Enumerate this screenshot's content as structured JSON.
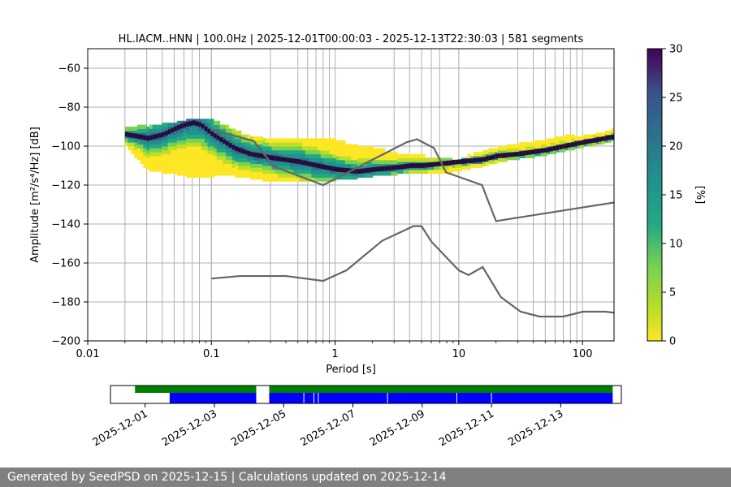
{
  "chart_data": {
    "type": "heatmap",
    "title": "HL.IACM..HNN | 100.0Hz | 2025-12-01T00:00:03 - 2025-12-13T22:30:03 | 581 segments",
    "xlabel": "Period [s]",
    "ylabel": "Amplitude [m²/s⁴/Hz] [dB]",
    "xscale": "log",
    "xlim": [
      0.01,
      180
    ],
    "ylim": [
      -200,
      -50
    ],
    "xticks": [
      0.01,
      0.1,
      1,
      10,
      100
    ],
    "xtick_labels": [
      "0.01",
      "0.1",
      "1",
      "10",
      "100"
    ],
    "yticks": [
      -200,
      -180,
      -160,
      -140,
      -120,
      -100,
      -80,
      -60
    ],
    "ytick_labels": [
      "−200",
      "−180",
      "−160",
      "−140",
      "−120",
      "−100",
      "−80",
      "−60"
    ],
    "grid": true,
    "colormap": "viridis_r",
    "colorbar": {
      "label": "[%]",
      "min": 0,
      "max": 30,
      "ticks": [
        0,
        5,
        10,
        15,
        20,
        25,
        30
      ],
      "tick_labels": [
        "0",
        "5",
        "10",
        "15",
        "20",
        "25",
        "30"
      ]
    },
    "psd_mode": {
      "x": [
        0.02,
        0.025,
        0.03,
        0.04,
        0.05,
        0.06,
        0.07,
        0.08,
        0.1,
        0.15,
        0.2,
        0.3,
        0.5,
        0.7,
        1,
        1.5,
        2,
        3,
        4,
        5,
        7,
        10,
        15,
        20,
        30,
        50,
        70,
        100,
        150,
        180
      ],
      "y": [
        -94,
        -95,
        -96,
        -94,
        -91,
        -89,
        -88,
        -89,
        -94,
        -101,
        -104,
        -106,
        -108,
        -110,
        -112,
        -113,
        -112,
        -111,
        -110,
        -110,
        -109,
        -108,
        -107,
        -105,
        -104,
        -102,
        -100,
        -98,
        -96,
        -95
      ]
    },
    "psd_spread": {
      "x": [
        0.02,
        0.03,
        0.05,
        0.07,
        0.1,
        0.15,
        0.2,
        0.3,
        0.5,
        0.7,
        1,
        1.5,
        2,
        3,
        5,
        7,
        10,
        15,
        20,
        30,
        50,
        70,
        100,
        150,
        180
      ],
      "upper": [
        -90,
        -90,
        -88,
        -86,
        -88,
        -92,
        -96,
        -98,
        -96,
        -96,
        -98,
        -101,
        -102,
        -104,
        -106,
        -108,
        -107,
        -104,
        -102,
        -100,
        -98,
        -96,
        -95,
        -93,
        -91
      ],
      "lower": [
        -100,
        -112,
        -114,
        -116,
        -115,
        -115,
        -116,
        -118,
        -118,
        -118,
        -117,
        -116,
        -115,
        -114,
        -114,
        -114,
        -112,
        -110,
        -108,
        -106,
        -104,
        -102,
        -100,
        -98,
        -96
      ]
    },
    "nhnm": {
      "x": [
        0.1,
        0.22,
        0.32,
        0.8,
        3.8,
        4.6,
        6.3,
        7.9,
        15.4,
        20,
        354.8
      ],
      "y": [
        -91.5,
        -97.4,
        -110.5,
        -120,
        -98,
        -96.5,
        -101,
        -113.5,
        -120,
        -138.5,
        -126
      ]
    },
    "nlnm": {
      "x": [
        0.1,
        0.17,
        0.4,
        0.8,
        1.24,
        2.4,
        4.3,
        5,
        6,
        10,
        12,
        15.6,
        21.9,
        31.6,
        45,
        70,
        101,
        154,
        328
      ],
      "y": [
        -168,
        -166.7,
        -166.7,
        -169.2,
        -163.7,
        -148.6,
        -141.1,
        -141.1,
        -149,
        -163.8,
        -166.2,
        -162.1,
        -177.5,
        -185,
        -187.5,
        -187.5,
        -185,
        -185,
        -187.5
      ]
    },
    "segment_period_lines": [
      0.02,
      0.03,
      0.04,
      0.05,
      0.06,
      0.07,
      0.08,
      0.1,
      0.3,
      0.5,
      0.6,
      0.7,
      0.8,
      0.9,
      3,
      4,
      5,
      6,
      7,
      30,
      40,
      50,
      60,
      70,
      80,
      90
    ],
    "timeline": {
      "start": "2025-11-30",
      "end": "2025-12-14T18:00:00",
      "tick_dates": [
        "2025-12-01",
        "2025-12-03",
        "2025-12-05",
        "2025-12-07",
        "2025-12-09",
        "2025-12-11",
        "2025-12-13"
      ],
      "green_spans": [
        [
          "2025-11-30T17:00:00",
          "2025-12-04T05:00:00"
        ],
        [
          "2025-12-04T14:00:00",
          "2025-12-14T12:00:00"
        ]
      ],
      "blue_spans": [
        [
          "2025-12-01T17:00:00",
          "2025-12-04T05:00:00"
        ],
        [
          "2025-12-04T14:00:00",
          "2025-12-14T12:00:00"
        ]
      ],
      "gaps": [
        "2025-12-05T14:00:00",
        "2025-12-05T21:00:00",
        "2025-12-06T00:00:00",
        "2025-12-08T00:00:00",
        "2025-12-10T00:00:00",
        "2025-12-11T00:00:00"
      ],
      "colors": {
        "green": "#008000",
        "blue": "#0000ff"
      }
    }
  },
  "footer": {
    "text": "Generated by SeedPSD on 2025-12-15 | Calculations updated on 2025-12-14"
  }
}
